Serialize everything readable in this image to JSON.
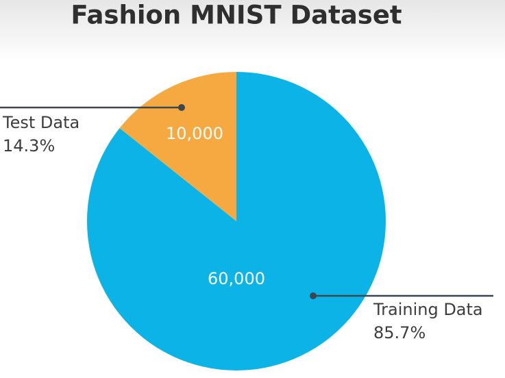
{
  "chart_data": {
    "type": "pie",
    "title": "Fashion MNIST Dataset",
    "categories": [
      "Training Data",
      "Test Data"
    ],
    "values": [
      60000,
      10000
    ],
    "value_labels": [
      "60,000",
      "10,000"
    ],
    "percents": [
      85.7,
      14.3
    ],
    "percent_labels": [
      "85.7%",
      "14.3%"
    ],
    "colors": [
      "#0bb3e6",
      "#f7a941"
    ]
  }
}
